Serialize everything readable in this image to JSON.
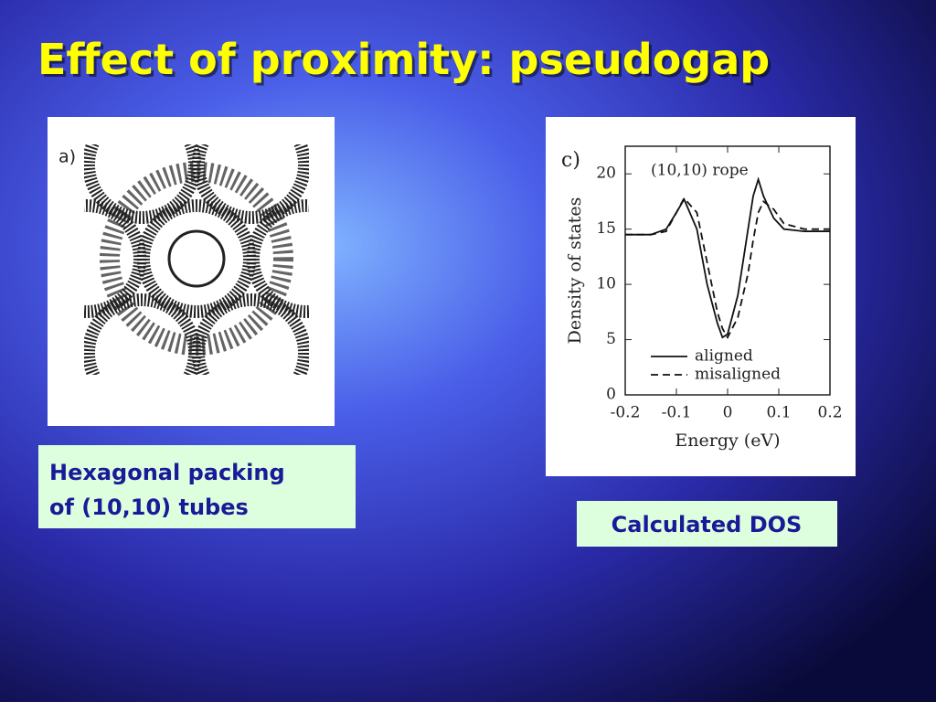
{
  "title": "Effect of proximity: pseudogap",
  "left_figure": {
    "label": "a)",
    "caption": [
      "Hexagonal packing",
      "of (10,10) tubes"
    ]
  },
  "right_caption": "Calculated DOS",
  "chart_data": {
    "type": "line",
    "panel_label": "c)",
    "annotation": "(10,10) rope",
    "xlabel": "Energy (eV)",
    "ylabel": "Density of states",
    "x": [
      -0.2,
      -0.15,
      -0.12,
      -0.1,
      -0.085,
      -0.06,
      -0.04,
      -0.02,
      -0.01,
      0,
      0.02,
      0.04,
      0.05,
      0.06,
      0.07,
      0.09,
      0.11,
      0.15,
      0.2
    ],
    "series": [
      {
        "name": "aligned",
        "color": "#111111",
        "style": "solid",
        "values": [
          14.5,
          14.5,
          15,
          16.5,
          17.7,
          15,
          10,
          6.5,
          5.2,
          5.5,
          9,
          15,
          18,
          19.5,
          18,
          16,
          15,
          14.8,
          14.8
        ]
      },
      {
        "name": "misaligned",
        "color": "#111111",
        "style": "dashed",
        "values": [
          14.5,
          14.5,
          14.8,
          16.5,
          17.8,
          16.5,
          12,
          7.5,
          6,
          5.2,
          7,
          11,
          14,
          16.5,
          17.5,
          16.8,
          15.5,
          15,
          15
        ]
      }
    ],
    "xlim": [
      -0.2,
      0.2
    ],
    "xticks": [
      -0.2,
      -0.1,
      0,
      0.1,
      0.2
    ],
    "ylim": [
      0,
      22.5
    ],
    "yticks": [
      0,
      5,
      10,
      15,
      20
    ],
    "grid": false,
    "legend": "lower left"
  }
}
